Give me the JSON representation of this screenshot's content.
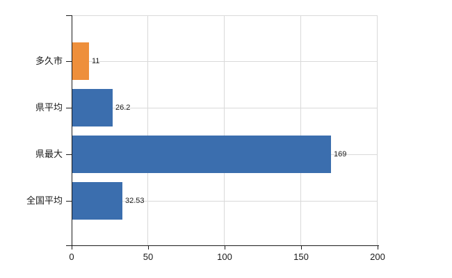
{
  "chart_data": {
    "type": "bar",
    "orientation": "horizontal",
    "title": "",
    "categories": [
      "多久市",
      "県平均",
      "県最大",
      "全国平均"
    ],
    "values": [
      11,
      26.2,
      169,
      32.53
    ],
    "value_labels": [
      "11",
      "26.2",
      "169",
      "32.53"
    ],
    "bar_colors": [
      "#ee8f3b",
      "#3b6eae",
      "#3b6eae",
      "#3b6eae"
    ],
    "xlim": [
      0,
      200
    ],
    "xticks": [
      0,
      50,
      100,
      150,
      200
    ],
    "xtick_labels": [
      "0",
      "50",
      "100",
      "150",
      "200"
    ],
    "grid": true,
    "legend": false,
    "colors": {
      "bar_blue": "#3b6eae",
      "bar_orange": "#ee8f3b",
      "gridline": "#d9d9d9",
      "axis": "#1a1a1a",
      "text": "#1a1a1a",
      "background": "#ffffff"
    }
  }
}
